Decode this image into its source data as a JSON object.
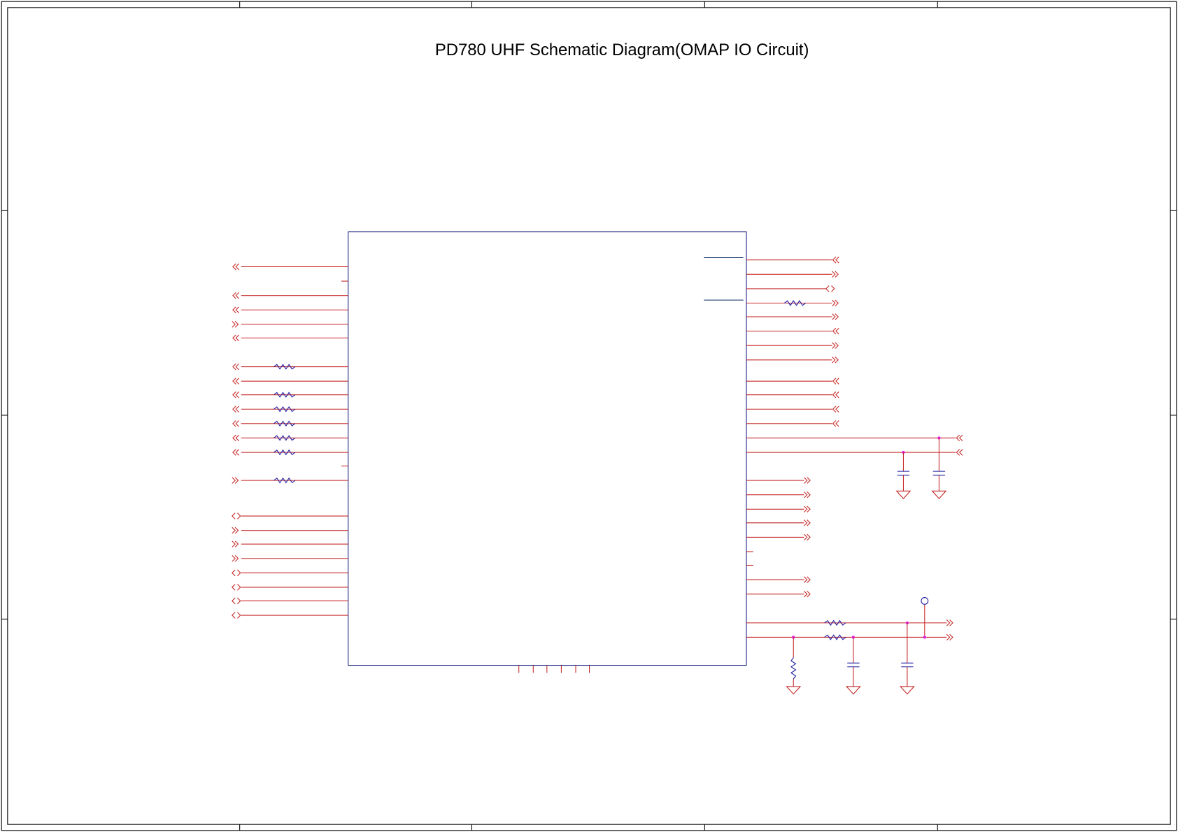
{
  "title": "PD780 UHF Schematic Diagram(OMAP IO Circuit)"
}
